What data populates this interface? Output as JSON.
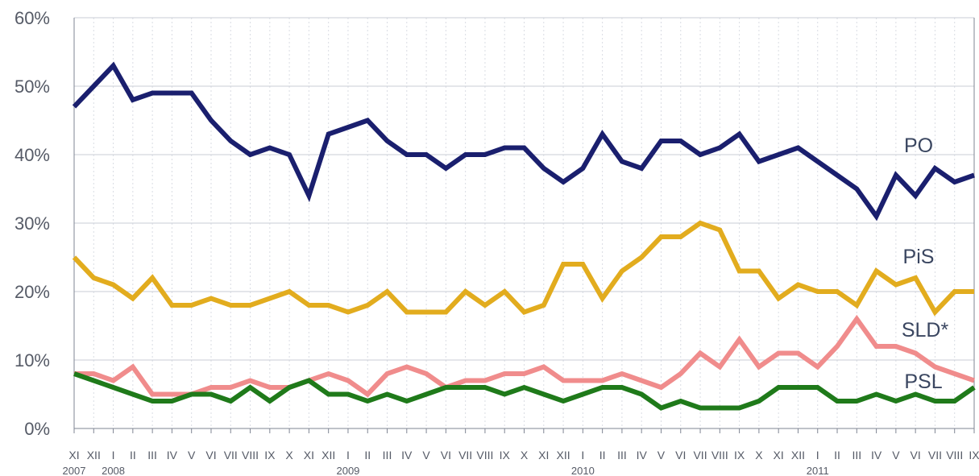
{
  "chart_data": {
    "type": "line",
    "x": [
      "XI",
      "XII",
      "I",
      "II",
      "III",
      "IV",
      "V",
      "VI",
      "VII",
      "VIII",
      "IX",
      "X",
      "XI",
      "XII",
      "I",
      "II",
      "III",
      "IV",
      "V",
      "VI",
      "VII",
      "VIII",
      "IX",
      "X",
      "XI",
      "XII",
      "I",
      "II",
      "III",
      "IV",
      "V",
      "VI",
      "VII",
      "VIII",
      "IX",
      "X",
      "XI",
      "XII",
      "I",
      "II",
      "III",
      "IV",
      "V",
      "VI",
      "VII",
      "VIII",
      "IX"
    ],
    "year_labels": [
      {
        "label": "2007",
        "x_index": 0
      },
      {
        "label": "2008",
        "x_index": 2
      },
      {
        "label": "2009",
        "x_index": 14
      },
      {
        "label": "2010",
        "x_index": 26
      },
      {
        "label": "2011",
        "x_index": 38
      }
    ],
    "ylim": [
      0,
      60
    ],
    "yticks": [
      "0%",
      "10%",
      "20%",
      "30%",
      "40%",
      "50%",
      "60%"
    ],
    "grid": true,
    "series": [
      {
        "name": "PO",
        "color": "#1a1f6e",
        "values": [
          47,
          50,
          53,
          48,
          49,
          49,
          49,
          45,
          42,
          40,
          41,
          40,
          34,
          43,
          44,
          45,
          42,
          40,
          40,
          38,
          40,
          40,
          41,
          41,
          38,
          36,
          38,
          43,
          39,
          38,
          42,
          42,
          40,
          41,
          43,
          39,
          40,
          41,
          39,
          37,
          35,
          31,
          37,
          34,
          38,
          36,
          37
        ]
      },
      {
        "name": "PiS",
        "color": "#e2ac1e",
        "values": [
          25,
          22,
          21,
          19,
          22,
          18,
          18,
          19,
          18,
          18,
          19,
          20,
          18,
          18,
          17,
          18,
          20,
          17,
          17,
          17,
          20,
          18,
          20,
          17,
          18,
          24,
          24,
          19,
          23,
          25,
          28,
          28,
          30,
          29,
          23,
          23,
          19,
          21,
          20,
          20,
          18,
          23,
          21,
          22,
          17,
          20,
          20
        ]
      },
      {
        "name": "SLD*",
        "color": "#f08c8c",
        "values": [
          8,
          8,
          7,
          9,
          5,
          5,
          5,
          6,
          6,
          7,
          6,
          6,
          7,
          8,
          7,
          5,
          8,
          9,
          8,
          6,
          7,
          7,
          8,
          8,
          9,
          7,
          7,
          7,
          8,
          7,
          6,
          8,
          11,
          9,
          13,
          9,
          11,
          11,
          9,
          12,
          16,
          12,
          12,
          11,
          9,
          8,
          7
        ]
      },
      {
        "name": "PSL",
        "color": "#1f7a1a",
        "values": [
          8,
          7,
          6,
          5,
          4,
          4,
          5,
          5,
          4,
          6,
          4,
          6,
          7,
          5,
          5,
          4,
          5,
          4,
          5,
          6,
          6,
          6,
          5,
          6,
          5,
          4,
          5,
          6,
          6,
          5,
          3,
          4,
          3,
          3,
          3,
          4,
          6,
          6,
          6,
          4,
          4,
          5,
          4,
          5,
          4,
          4,
          6
        ]
      }
    ]
  }
}
